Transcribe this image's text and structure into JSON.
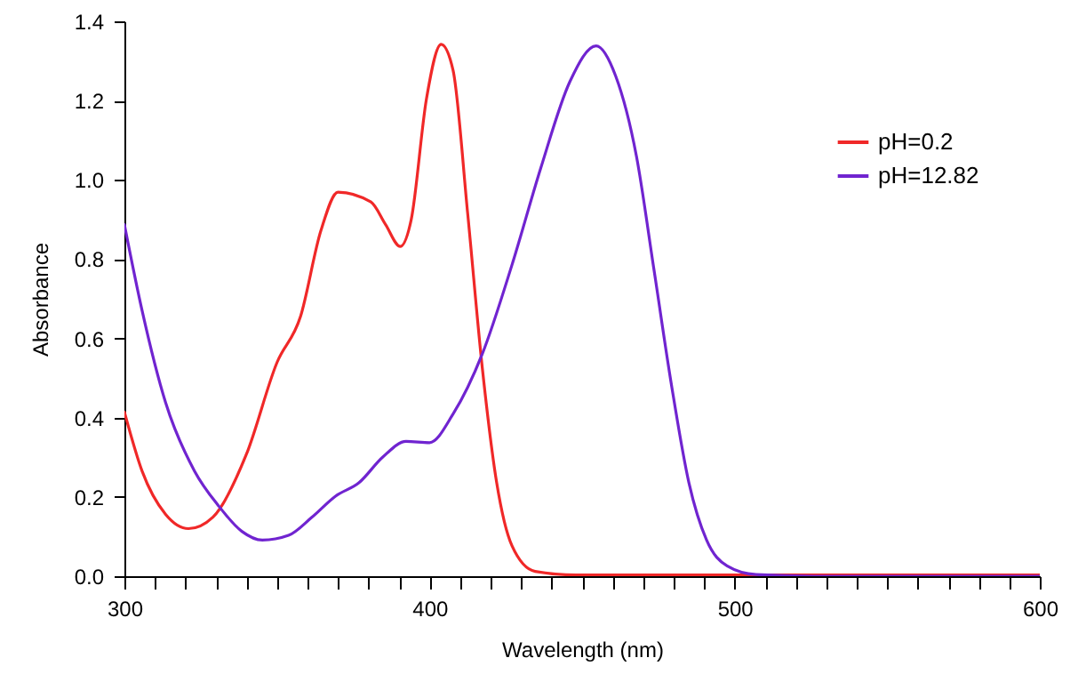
{
  "chart_data": {
    "type": "line",
    "xlabel": "Wavelength (nm)",
    "ylabel": "Absorbance",
    "xlim": [
      300,
      600
    ],
    "ylim": [
      0,
      1.4
    ],
    "xticks": [
      300,
      {
        "value": 310,
        "label": null
      },
      {
        "value": 320,
        "label": null
      },
      {
        "value": 330,
        "label": null
      },
      {
        "value": 340,
        "label": null
      },
      {
        "value": 350,
        "label": null
      },
      {
        "value": 360,
        "label": null
      },
      {
        "value": 370,
        "label": null
      },
      {
        "value": 380,
        "label": null
      },
      {
        "value": 390,
        "label": null
      },
      400,
      {
        "value": 410,
        "label": null
      },
      {
        "value": 420,
        "label": null
      },
      {
        "value": 430,
        "label": null
      },
      {
        "value": 440,
        "label": null
      },
      {
        "value": 450,
        "label": null
      },
      {
        "value": 460,
        "label": null
      },
      {
        "value": 470,
        "label": null
      },
      {
        "value": 480,
        "label": null
      },
      {
        "value": 490,
        "label": null
      },
      500,
      {
        "value": 510,
        "label": null
      },
      {
        "value": 520,
        "label": null
      },
      {
        "value": 530,
        "label": null
      },
      {
        "value": 540,
        "label": null
      },
      {
        "value": 550,
        "label": null
      },
      {
        "value": 560,
        "label": null
      },
      {
        "value": 570,
        "label": null
      },
      {
        "value": 580,
        "label": null
      },
      {
        "value": 590,
        "label": null
      },
      600
    ],
    "yticks": [
      {
        "value": 0,
        "label": "0.0"
      },
      0.2,
      0.4,
      0.6,
      0.8,
      {
        "value": 1,
        "label": "1.0"
      },
      1.2,
      1.4
    ],
    "grid": false,
    "legend": "top right",
    "marker": "none",
    "line_style": "solid",
    "series": [
      {
        "name": "pH=0.2",
        "color": "#f02828",
        "x": [
          300,
          305.8,
          313.5,
          321,
          329,
          340,
          350,
          357.7,
          364.4,
          370,
          380.8,
          385.6,
          390.4,
          394,
          399,
          403.8,
          407.7,
          412.5,
          417.3,
          422,
          427,
          434.6,
          448,
          500,
          600
        ],
        "values": [
          0.414,
          0.265,
          0.156,
          0.12,
          0.149,
          0.308,
          0.539,
          0.655,
          0.872,
          0.969,
          0.944,
          0.887,
          0.832,
          0.9,
          1.205,
          1.342,
          1.277,
          0.915,
          0.525,
          0.236,
          0.077,
          0.012,
          0.003,
          0.003,
          0.003
        ]
      },
      {
        "name": "pH=12.82",
        "color": "#7024d0",
        "x": [
          300,
          305.8,
          313.5,
          323,
          330.8,
          338.5,
          345.2,
          353.8,
          361.5,
          369.2,
          376.9,
          384.6,
          392.3,
          400,
          407.7,
          417.3,
          427,
          436.5,
          446,
          454.6,
          461,
          467.8,
          473.6,
          479.3,
          485,
          490.8,
          497.5,
          507,
          526,
          600
        ],
        "values": [
          0.887,
          0.67,
          0.438,
          0.265,
          0.178,
          0.113,
          0.091,
          0.103,
          0.149,
          0.202,
          0.236,
          0.3,
          0.34,
          0.337,
          0.409,
          0.561,
          0.785,
          1.031,
          1.248,
          1.338,
          1.262,
          1.06,
          0.771,
          0.482,
          0.236,
          0.091,
          0.026,
          0.004,
          0,
          0
        ]
      }
    ]
  }
}
